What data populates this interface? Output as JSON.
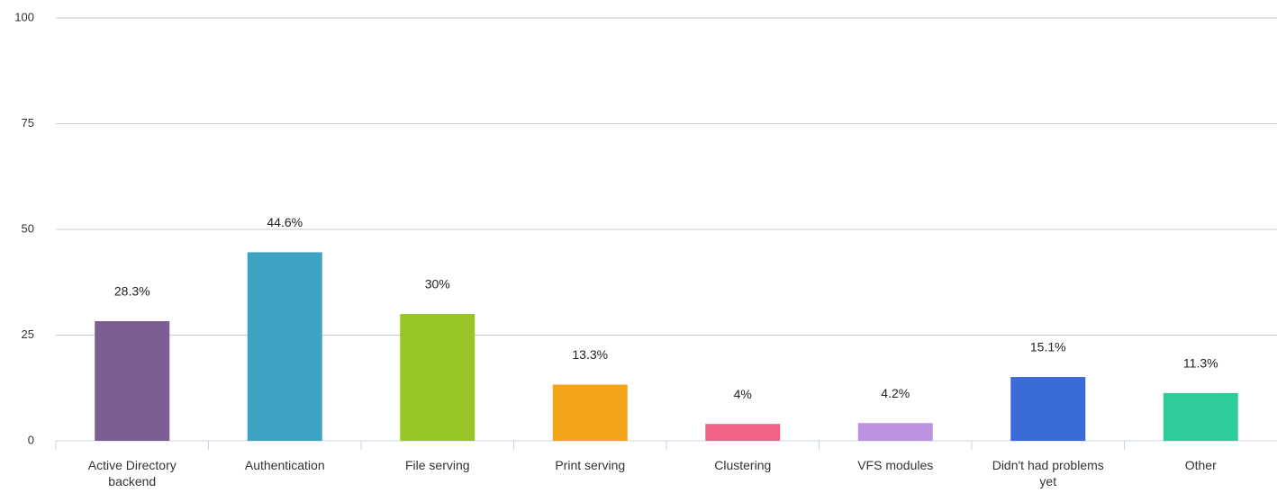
{
  "chart_data": {
    "type": "bar",
    "categories": [
      "Active Directory backend",
      "Authentication",
      "File serving",
      "Print serving",
      "Clustering",
      "VFS modules",
      "Didn't had problems yet",
      "Other"
    ],
    "values": [
      28.3,
      44.6,
      30,
      13.3,
      4,
      4.2,
      15.1,
      11.3
    ],
    "value_labels": [
      "28.3%",
      "44.6%",
      "30%",
      "13.3%",
      "4%",
      "4.2%",
      "15.1%",
      "11.3%"
    ],
    "colors": [
      "#7b5e92",
      "#3ea3c2",
      "#97c626",
      "#f3a41b",
      "#ef6486",
      "#bb93e0",
      "#3b6bd6",
      "#2ecb9b"
    ],
    "ylim": [
      0,
      100
    ],
    "yticks": [
      0,
      25,
      50,
      75,
      100
    ],
    "grid": true
  }
}
